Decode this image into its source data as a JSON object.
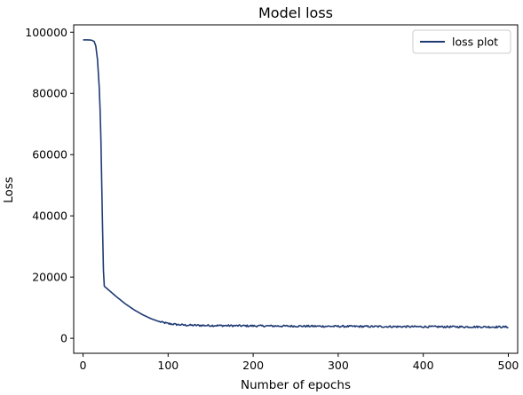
{
  "chart_data": {
    "type": "line",
    "title": "Model loss",
    "xlabel": "Number of epochs",
    "ylabel": "Loss",
    "xlim": [
      -11,
      511
    ],
    "ylim": [
      -4900,
      102400
    ],
    "xticks": [
      0,
      100,
      200,
      300,
      400,
      500
    ],
    "yticks": [
      0,
      20000,
      40000,
      60000,
      80000,
      100000
    ],
    "grid": false,
    "legend_position": "top-right",
    "series": [
      {
        "name": "loss plot",
        "color": "#1f3a73",
        "points": [
          [
            0,
            97500
          ],
          [
            5,
            97500
          ],
          [
            10,
            97400
          ],
          [
            13,
            97000
          ],
          [
            15,
            95500
          ],
          [
            17,
            91000
          ],
          [
            19,
            82000
          ],
          [
            20,
            75000
          ],
          [
            21,
            65000
          ],
          [
            22,
            50000
          ],
          [
            23,
            35000
          ],
          [
            24,
            22000
          ],
          [
            25,
            17000
          ],
          [
            30,
            15800
          ],
          [
            40,
            13400
          ],
          [
            50,
            11200
          ],
          [
            60,
            9300
          ],
          [
            70,
            7700
          ],
          [
            80,
            6400
          ],
          [
            90,
            5400
          ],
          [
            100,
            4800
          ],
          [
            110,
            4500
          ],
          [
            120,
            4300
          ],
          [
            140,
            4200
          ],
          [
            160,
            4150
          ],
          [
            180,
            4100
          ],
          [
            200,
            4050
          ],
          [
            250,
            3980
          ],
          [
            300,
            3900
          ],
          [
            350,
            3830
          ],
          [
            400,
            3780
          ],
          [
            450,
            3740
          ],
          [
            500,
            3700
          ]
        ]
      }
    ]
  }
}
